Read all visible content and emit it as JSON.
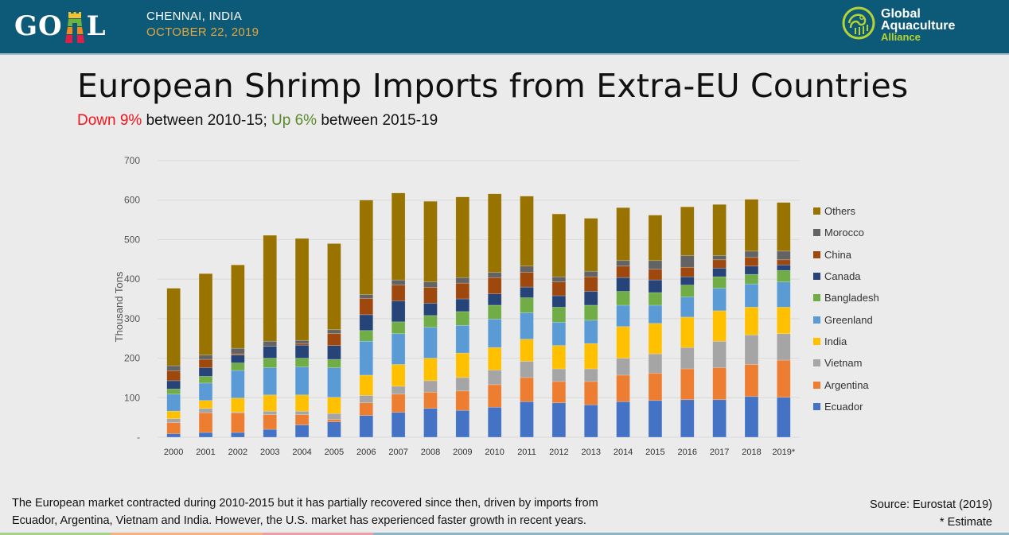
{
  "header": {
    "event_logo_text": [
      "GO",
      "L"
    ],
    "event_city": "CHENNAI, INDIA",
    "event_date": "OCTOBER 22, 2019",
    "org_lines": [
      "Global",
      "Aquaculture"
    ],
    "org_alliance": "Alliance",
    "colors": {
      "bar": "#0d5a78",
      "date": "#e8a43a",
      "org_accent": "#b5d334"
    }
  },
  "slide": {
    "title": "European Shrimp Imports from Extra-EU Countries",
    "subtitle": {
      "down_label": "Down 9%",
      "down_rest": " between 2010-15; ",
      "up_label": "Up 6%",
      "up_rest": " between 2015-19",
      "down_color": "#f2141c",
      "up_color": "#5b8a2c"
    },
    "footnote_lines": [
      "The European market contracted during 2010-2015 but it has partially recovered since then, driven by imports from",
      "Ecuador, Argentina, Vietnam and India.  However, the U.S. market has experienced faster growth in recent years."
    ],
    "source": "Source: Eurostat (2019)",
    "estimate_note": "* Estimate",
    "bottom_stripe_colors": [
      "#a8d08d",
      "#f4b183",
      "#e8a0a8",
      "#8eb4c6"
    ]
  },
  "chart_data": {
    "type": "bar",
    "stacked": true,
    "title": "",
    "xlabel": "",
    "ylabel": "Thousand Tons",
    "ylim": [
      0,
      700
    ],
    "yticks": [
      0,
      100,
      200,
      300,
      400,
      500,
      600,
      700
    ],
    "ytick_labels": [
      "-",
      "100",
      "200",
      "300",
      "400",
      "500",
      "600",
      "700"
    ],
    "grid": true,
    "legend_position": "right",
    "categories": [
      "2000",
      "2001",
      "2002",
      "2003",
      "2004",
      "2005",
      "2006",
      "2007",
      "2008",
      "2009",
      "2010",
      "2011",
      "2012",
      "2013",
      "2014",
      "2015",
      "2016",
      "2017",
      "2018",
      "2019*"
    ],
    "series": [
      {
        "name": "Ecuador",
        "color": "#4472c4",
        "values": [
          9,
          12,
          12,
          20,
          31,
          39,
          55,
          63,
          73,
          68,
          76,
          90,
          87,
          82,
          90,
          93,
          95,
          95,
          103,
          101
        ]
      },
      {
        "name": "Argentina",
        "color": "#ed7d31",
        "values": [
          28,
          50,
          50,
          37,
          26,
          6,
          32,
          46,
          41,
          49,
          57,
          61,
          54,
          59,
          67,
          69,
          78,
          81,
          81,
          94
        ]
      },
      {
        "name": "Vietnam",
        "color": "#a5a5a5",
        "values": [
          10,
          11,
          2,
          9,
          9,
          15,
          19,
          20,
          29,
          34,
          37,
          41,
          32,
          32,
          43,
          49,
          54,
          67,
          75,
          67
        ]
      },
      {
        "name": "India",
        "color": "#ffc000",
        "values": [
          19,
          20,
          35,
          41,
          41,
          41,
          51,
          55,
          57,
          62,
          57,
          56,
          59,
          64,
          80,
          77,
          77,
          77,
          70,
          67
        ]
      },
      {
        "name": "Greenland",
        "color": "#5b9bd5",
        "values": [
          43,
          44,
          70,
          69,
          71,
          75,
          86,
          78,
          78,
          70,
          72,
          67,
          59,
          59,
          54,
          46,
          51,
          57,
          59,
          64
        ]
      },
      {
        "name": "Bangladesh",
        "color": "#70ad47",
        "values": [
          13,
          17,
          19,
          24,
          22,
          21,
          27,
          30,
          30,
          35,
          35,
          38,
          38,
          38,
          35,
          32,
          30,
          29,
          24,
          29
        ]
      },
      {
        "name": "Canada",
        "color": "#264478",
        "values": [
          21,
          22,
          20,
          30,
          33,
          35,
          40,
          53,
          31,
          32,
          29,
          27,
          29,
          35,
          35,
          32,
          21,
          22,
          21,
          14
        ]
      },
      {
        "name": "China",
        "color": "#9e480e",
        "values": [
          25,
          21,
          3,
          0,
          4,
          30,
          41,
          40,
          40,
          40,
          41,
          37,
          35,
          37,
          29,
          27,
          24,
          21,
          22,
          13
        ]
      },
      {
        "name": "Morocco",
        "color": "#636363",
        "values": [
          13,
          11,
          14,
          13,
          8,
          10,
          10,
          13,
          14,
          14,
          13,
          16,
          13,
          14,
          14,
          22,
          30,
          11,
          16,
          22
        ]
      },
      {
        "name": "Others",
        "color": "#997300",
        "values": [
          196,
          206,
          211,
          268,
          258,
          218,
          239,
          220,
          204,
          204,
          199,
          177,
          159,
          134,
          134,
          115,
          123,
          129,
          131,
          123
        ]
      }
    ],
    "totals": [
      377,
      414,
      436,
      511,
      503,
      490,
      600,
      618,
      597,
      608,
      616,
      610,
      565,
      554,
      581,
      562,
      583,
      589,
      602,
      594
    ]
  }
}
